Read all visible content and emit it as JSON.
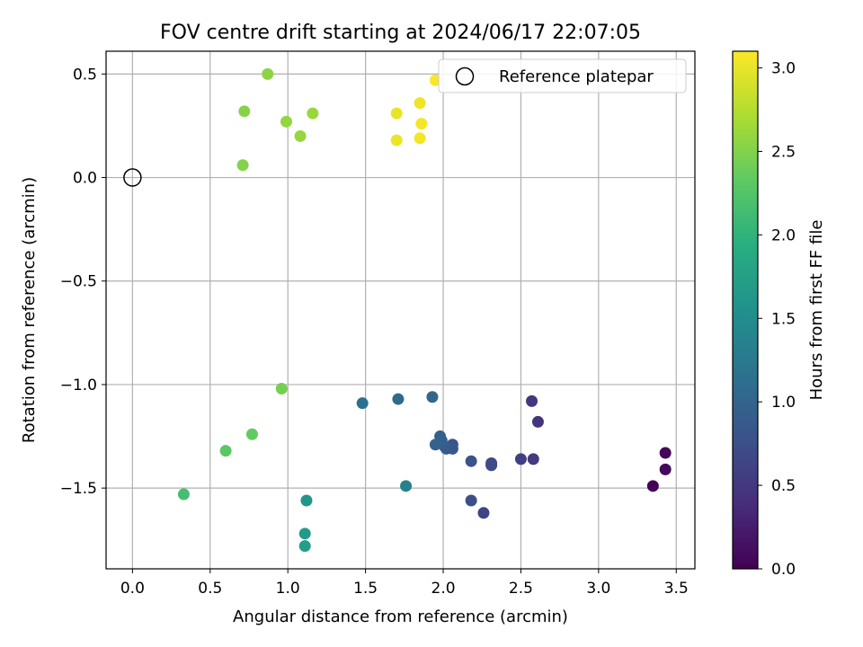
{
  "chart_data": {
    "type": "scatter",
    "title": "FOV centre drift starting at 2024/06/17 22:07:05",
    "xlabel": "Angular distance from reference (arcmin)",
    "ylabel": "Rotation from reference (arcmin)",
    "xlim": [
      -0.17,
      3.62
    ],
    "ylim": [
      -1.89,
      0.61
    ],
    "xticks": [
      0.0,
      0.5,
      1.0,
      1.5,
      2.0,
      2.5,
      3.0,
      3.5
    ],
    "xtick_labels": [
      "0.0",
      "0.5",
      "1.0",
      "1.5",
      "2.0",
      "2.5",
      "3.0",
      "3.5"
    ],
    "yticks": [
      0.5,
      0.0,
      -0.5,
      -1.0,
      -1.5
    ],
    "ytick_labels": [
      "0.5",
      "0.0",
      "−0.5",
      "−1.0",
      "−1.5"
    ],
    "grid": true,
    "colormap": "viridis",
    "colorbar": {
      "label": "Hours from first FF file",
      "range": [
        0.0,
        3.1
      ],
      "ticks": [
        0.0,
        0.5,
        1.0,
        1.5,
        2.0,
        2.5,
        3.0
      ],
      "tick_labels": [
        "0.0",
        "0.5",
        "1.0",
        "1.5",
        "2.0",
        "2.5",
        "3.0"
      ]
    },
    "reference": {
      "x": 0.0,
      "y": 0.0,
      "label": "Reference platepar"
    },
    "legend": {
      "position": "top-right"
    },
    "points": [
      {
        "x": 3.35,
        "y": -1.49,
        "h": 0.02
      },
      {
        "x": 3.43,
        "y": -1.33,
        "h": 0.05
      },
      {
        "x": 3.43,
        "y": -1.41,
        "h": 0.07
      },
      {
        "x": 2.61,
        "y": -1.18,
        "h": 0.45
      },
      {
        "x": 2.57,
        "y": -1.08,
        "h": 0.48
      },
      {
        "x": 2.58,
        "y": -1.36,
        "h": 0.52
      },
      {
        "x": 2.5,
        "y": -1.36,
        "h": 0.58
      },
      {
        "x": 2.26,
        "y": -1.62,
        "h": 0.62
      },
      {
        "x": 2.31,
        "y": -1.38,
        "h": 0.66
      },
      {
        "x": 2.31,
        "y": -1.39,
        "h": 0.7
      },
      {
        "x": 2.18,
        "y": -1.56,
        "h": 0.74
      },
      {
        "x": 2.18,
        "y": -1.37,
        "h": 0.77
      },
      {
        "x": 2.06,
        "y": -1.29,
        "h": 0.82
      },
      {
        "x": 2.06,
        "y": -1.31,
        "h": 0.84
      },
      {
        "x": 2.02,
        "y": -1.31,
        "h": 0.88
      },
      {
        "x": 2.01,
        "y": -1.3,
        "h": 0.9
      },
      {
        "x": 1.99,
        "y": -1.27,
        "h": 0.93
      },
      {
        "x": 1.98,
        "y": -1.25,
        "h": 0.95
      },
      {
        "x": 1.95,
        "y": -1.29,
        "h": 0.98
      },
      {
        "x": 1.93,
        "y": -1.06,
        "h": 1.02
      },
      {
        "x": 1.71,
        "y": -1.07,
        "h": 1.08
      },
      {
        "x": 1.48,
        "y": -1.09,
        "h": 1.15
      },
      {
        "x": 1.76,
        "y": -1.49,
        "h": 1.35
      },
      {
        "x": 1.12,
        "y": -1.56,
        "h": 1.62
      },
      {
        "x": 1.11,
        "y": -1.72,
        "h": 1.68
      },
      {
        "x": 1.11,
        "y": -1.78,
        "h": 1.72
      },
      {
        "x": 0.33,
        "y": -1.53,
        "h": 2.15
      },
      {
        "x": 0.6,
        "y": -1.32,
        "h": 2.3
      },
      {
        "x": 0.77,
        "y": -1.24,
        "h": 2.35
      },
      {
        "x": 0.96,
        "y": -1.02,
        "h": 2.45
      },
      {
        "x": 0.71,
        "y": 0.06,
        "h": 2.5
      },
      {
        "x": 0.72,
        "y": 0.32,
        "h": 2.52
      },
      {
        "x": 0.87,
        "y": 0.5,
        "h": 2.55
      },
      {
        "x": 0.99,
        "y": 0.27,
        "h": 2.58
      },
      {
        "x": 1.08,
        "y": 0.2,
        "h": 2.6
      },
      {
        "x": 1.16,
        "y": 0.31,
        "h": 2.62
      },
      {
        "x": 1.7,
        "y": 0.31,
        "h": 3.0
      },
      {
        "x": 1.7,
        "y": 0.18,
        "h": 3.02
      },
      {
        "x": 1.85,
        "y": 0.36,
        "h": 3.03
      },
      {
        "x": 1.86,
        "y": 0.26,
        "h": 3.05
      },
      {
        "x": 1.85,
        "y": 0.19,
        "h": 3.05
      },
      {
        "x": 1.95,
        "y": 0.47,
        "h": 3.08
      }
    ]
  }
}
